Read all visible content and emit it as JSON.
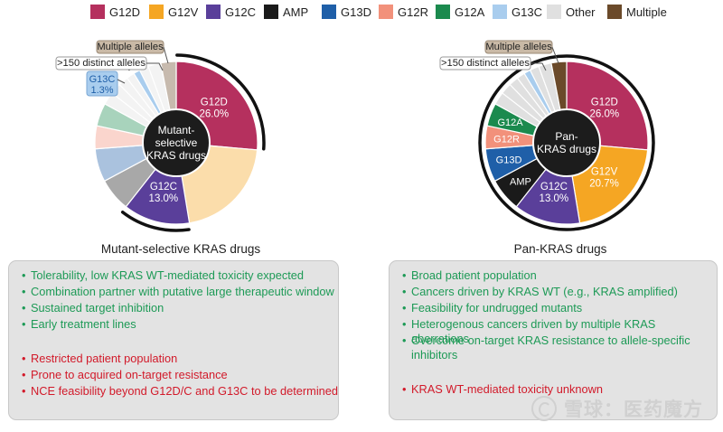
{
  "legend": [
    {
      "label": "G12D",
      "color": "#b5305e"
    },
    {
      "label": "G12V",
      "color": "#f5a623"
    },
    {
      "label": "G12C",
      "color": "#5a3f9a"
    },
    {
      "label": "AMP",
      "color": "#1a1a1a"
    },
    {
      "label": "G13D",
      "color": "#1f5fa8"
    },
    {
      "label": "G12R",
      "color": "#f2917b"
    },
    {
      "label": "G12A",
      "color": "#1b8a4e"
    },
    {
      "label": "G13C",
      "color": "#a9cdee"
    },
    {
      "label": "Other",
      "color": "#e0e0e0"
    },
    {
      "label": "Multiple",
      "color": "#6b4a2a"
    }
  ],
  "chart_data": [
    {
      "type": "pie",
      "title": "Mutant-selective KRAS drugs",
      "center_label": [
        "Mutant-",
        "selective",
        "KRAS drugs"
      ],
      "slices": [
        {
          "name": "G12D",
          "value": 26.0,
          "label": "26.0%",
          "color": "#b5305e",
          "muted": false
        },
        {
          "name": "G12V",
          "value": 20.7,
          "color": "#f5a623",
          "muted": true
        },
        {
          "name": "G12C",
          "value": 13.0,
          "label": "13.0%",
          "color": "#5a3f9a",
          "muted": false
        },
        {
          "name": "AMP",
          "value": 6.5,
          "color": "#1a1a1a",
          "muted": true
        },
        {
          "name": "G13D",
          "value": 6.5,
          "color": "#1f5fa8",
          "muted": true
        },
        {
          "name": "G12R",
          "value": 4.5,
          "color": "#f2917b",
          "muted": true
        },
        {
          "name": "G12A",
          "value": 4.5,
          "color": "#1b8a4e",
          "muted": true
        },
        {
          "name": "Other",
          "value": 2.5,
          "color": "#e0e0e0",
          "muted": true
        },
        {
          "name": "Other",
          "value": 2.2,
          "color": "#e0e0e0",
          "muted": true
        },
        {
          "name": "Other",
          "value": 1.9,
          "color": "#e0e0e0",
          "muted": true
        },
        {
          "name": "Other",
          "value": 1.6,
          "color": "#e0e0e0",
          "muted": true
        },
        {
          "name": "G13C",
          "value": 1.3,
          "color": "#a9cdee",
          "muted": false
        },
        {
          "name": "Other",
          "value": 1.8,
          "color": "#e0e0e0",
          "muted": true
        },
        {
          "name": "Other",
          "value": 2.5,
          "color": "#e0e0e0",
          "muted": true
        },
        {
          "name": "Multiple",
          "value": 3.0,
          "color": "#6b4a2a",
          "muted": true
        }
      ],
      "annotations": {
        "multiple": "Multiple alleles",
        "distinct": ">150 distinct alleles",
        "g13c": "G13C",
        "g13c_value": "1.3%"
      }
    },
    {
      "type": "pie",
      "title": "Pan-KRAS drugs",
      "center_label": [
        "Pan-",
        "KRAS drugs"
      ],
      "slices": [
        {
          "name": "G12D",
          "value": 26.0,
          "label": "26.0%",
          "color": "#b5305e",
          "muted": false
        },
        {
          "name": "G12V",
          "value": 20.7,
          "label": "20.7%",
          "color": "#f5a623",
          "muted": false
        },
        {
          "name": "G12C",
          "value": 13.0,
          "label": "13.0%",
          "color": "#5a3f9a",
          "muted": false
        },
        {
          "name": "AMP",
          "value": 6.5,
          "color": "#1a1a1a",
          "muted": false
        },
        {
          "name": "G13D",
          "value": 6.5,
          "color": "#1f5fa8",
          "muted": false
        },
        {
          "name": "G12R",
          "value": 4.5,
          "color": "#f2917b",
          "muted": false
        },
        {
          "name": "G12A",
          "value": 4.5,
          "color": "#1b8a4e",
          "muted": false
        },
        {
          "name": "Other",
          "value": 2.5,
          "color": "#e0e0e0",
          "muted": false
        },
        {
          "name": "Other",
          "value": 2.2,
          "color": "#e0e0e0",
          "muted": false
        },
        {
          "name": "Other",
          "value": 1.9,
          "color": "#e0e0e0",
          "muted": false
        },
        {
          "name": "Other",
          "value": 1.6,
          "color": "#e0e0e0",
          "muted": false
        },
        {
          "name": "G13C",
          "value": 1.3,
          "color": "#a9cdee",
          "muted": false
        },
        {
          "name": "Other",
          "value": 1.8,
          "color": "#e0e0e0",
          "muted": false
        },
        {
          "name": "Other",
          "value": 2.5,
          "color": "#e0e0e0",
          "muted": false
        },
        {
          "name": "Multiple",
          "value": 3.0,
          "color": "#6b4a2a",
          "muted": false
        }
      ],
      "annotations": {
        "multiple": "Multiple alleles",
        "distinct": ">150 distinct alleles"
      }
    }
  ],
  "panels": [
    {
      "green": [
        "Tolerability, low KRAS WT-mediated toxicity expected",
        "Combination partner with putative large therapeutic window",
        "Sustained target inhibition",
        "Early treatment lines"
      ],
      "red": [
        "Restricted patient population",
        "Prone to acquired on-target resistance",
        "NCE feasibility beyond G12D/C and G13C to be determined"
      ]
    },
    {
      "green": [
        "Broad patient population",
        "Cancers driven by KRAS WT (e.g., KRAS amplified)",
        "Feasibility for undrugged mutants",
        "Heterogenous cancers driven by multiple KRAS aberrations",
        "Overcome on-target KRAS resistance to allele-specific inhibitors"
      ],
      "red": [
        "KRAS WT-mediated toxicity unknown"
      ]
    }
  ],
  "bullet": "•",
  "watermark": "雪球：医药魔方"
}
